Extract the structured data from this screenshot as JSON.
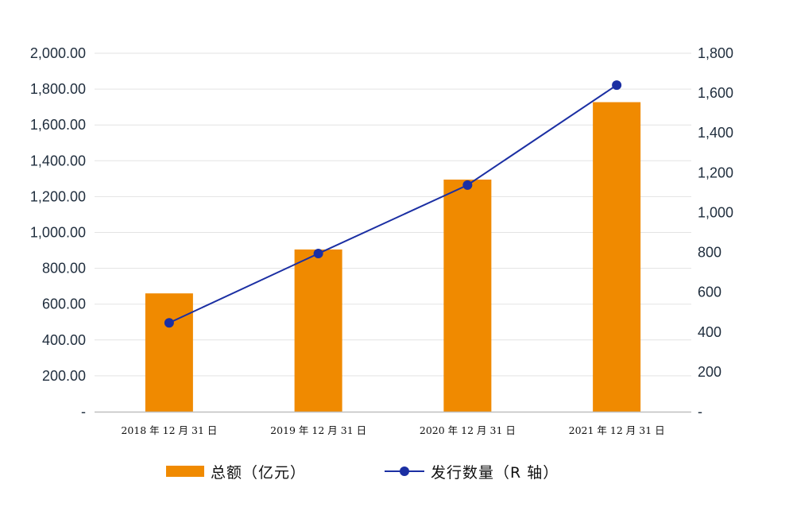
{
  "chart_data": {
    "type": "bar",
    "categories": [
      "2018 年 12 月 31 日",
      "2019 年 12 月 31 日",
      "2020 年 12 月 31 日",
      "2021 年 12 月 31 日"
    ],
    "series": [
      {
        "name": "总额（亿元）",
        "type": "bar",
        "axis": "left",
        "color": "#f08a00",
        "values": [
          660,
          905,
          1295,
          1727
        ]
      },
      {
        "name": "发行数量（R 轴）",
        "type": "line",
        "axis": "right",
        "color": "#1b2fa3",
        "values": [
          446,
          794,
          1138,
          1640
        ]
      }
    ],
    "y_left": {
      "lim": [
        0,
        2000
      ],
      "ticks": [
        0,
        200,
        400,
        600,
        800,
        1000,
        1200,
        1400,
        1600,
        1800,
        2000
      ],
      "tick_labels": [
        "-",
        "200.00",
        "400.00",
        "600.00",
        "800.00",
        "1,000.00",
        "1,200.00",
        "1,400.00",
        "1,600.00",
        "1,800.00",
        "2,000.00"
      ]
    },
    "y_right": {
      "lim": [
        0,
        1800
      ],
      "ticks": [
        0,
        200,
        400,
        600,
        800,
        1000,
        1200,
        1400,
        1600,
        1800
      ],
      "tick_labels": [
        "-",
        "200",
        "400",
        "600",
        "800",
        "1,000",
        "1,200",
        "1,400",
        "1,600",
        "1,800"
      ]
    },
    "grid": true,
    "legend": "bottom-center",
    "title": "",
    "xlabel": "",
    "ylabel": ""
  },
  "legend": {
    "bar_label": "总额（亿元）",
    "line_label": "发行数量（R 轴）"
  }
}
